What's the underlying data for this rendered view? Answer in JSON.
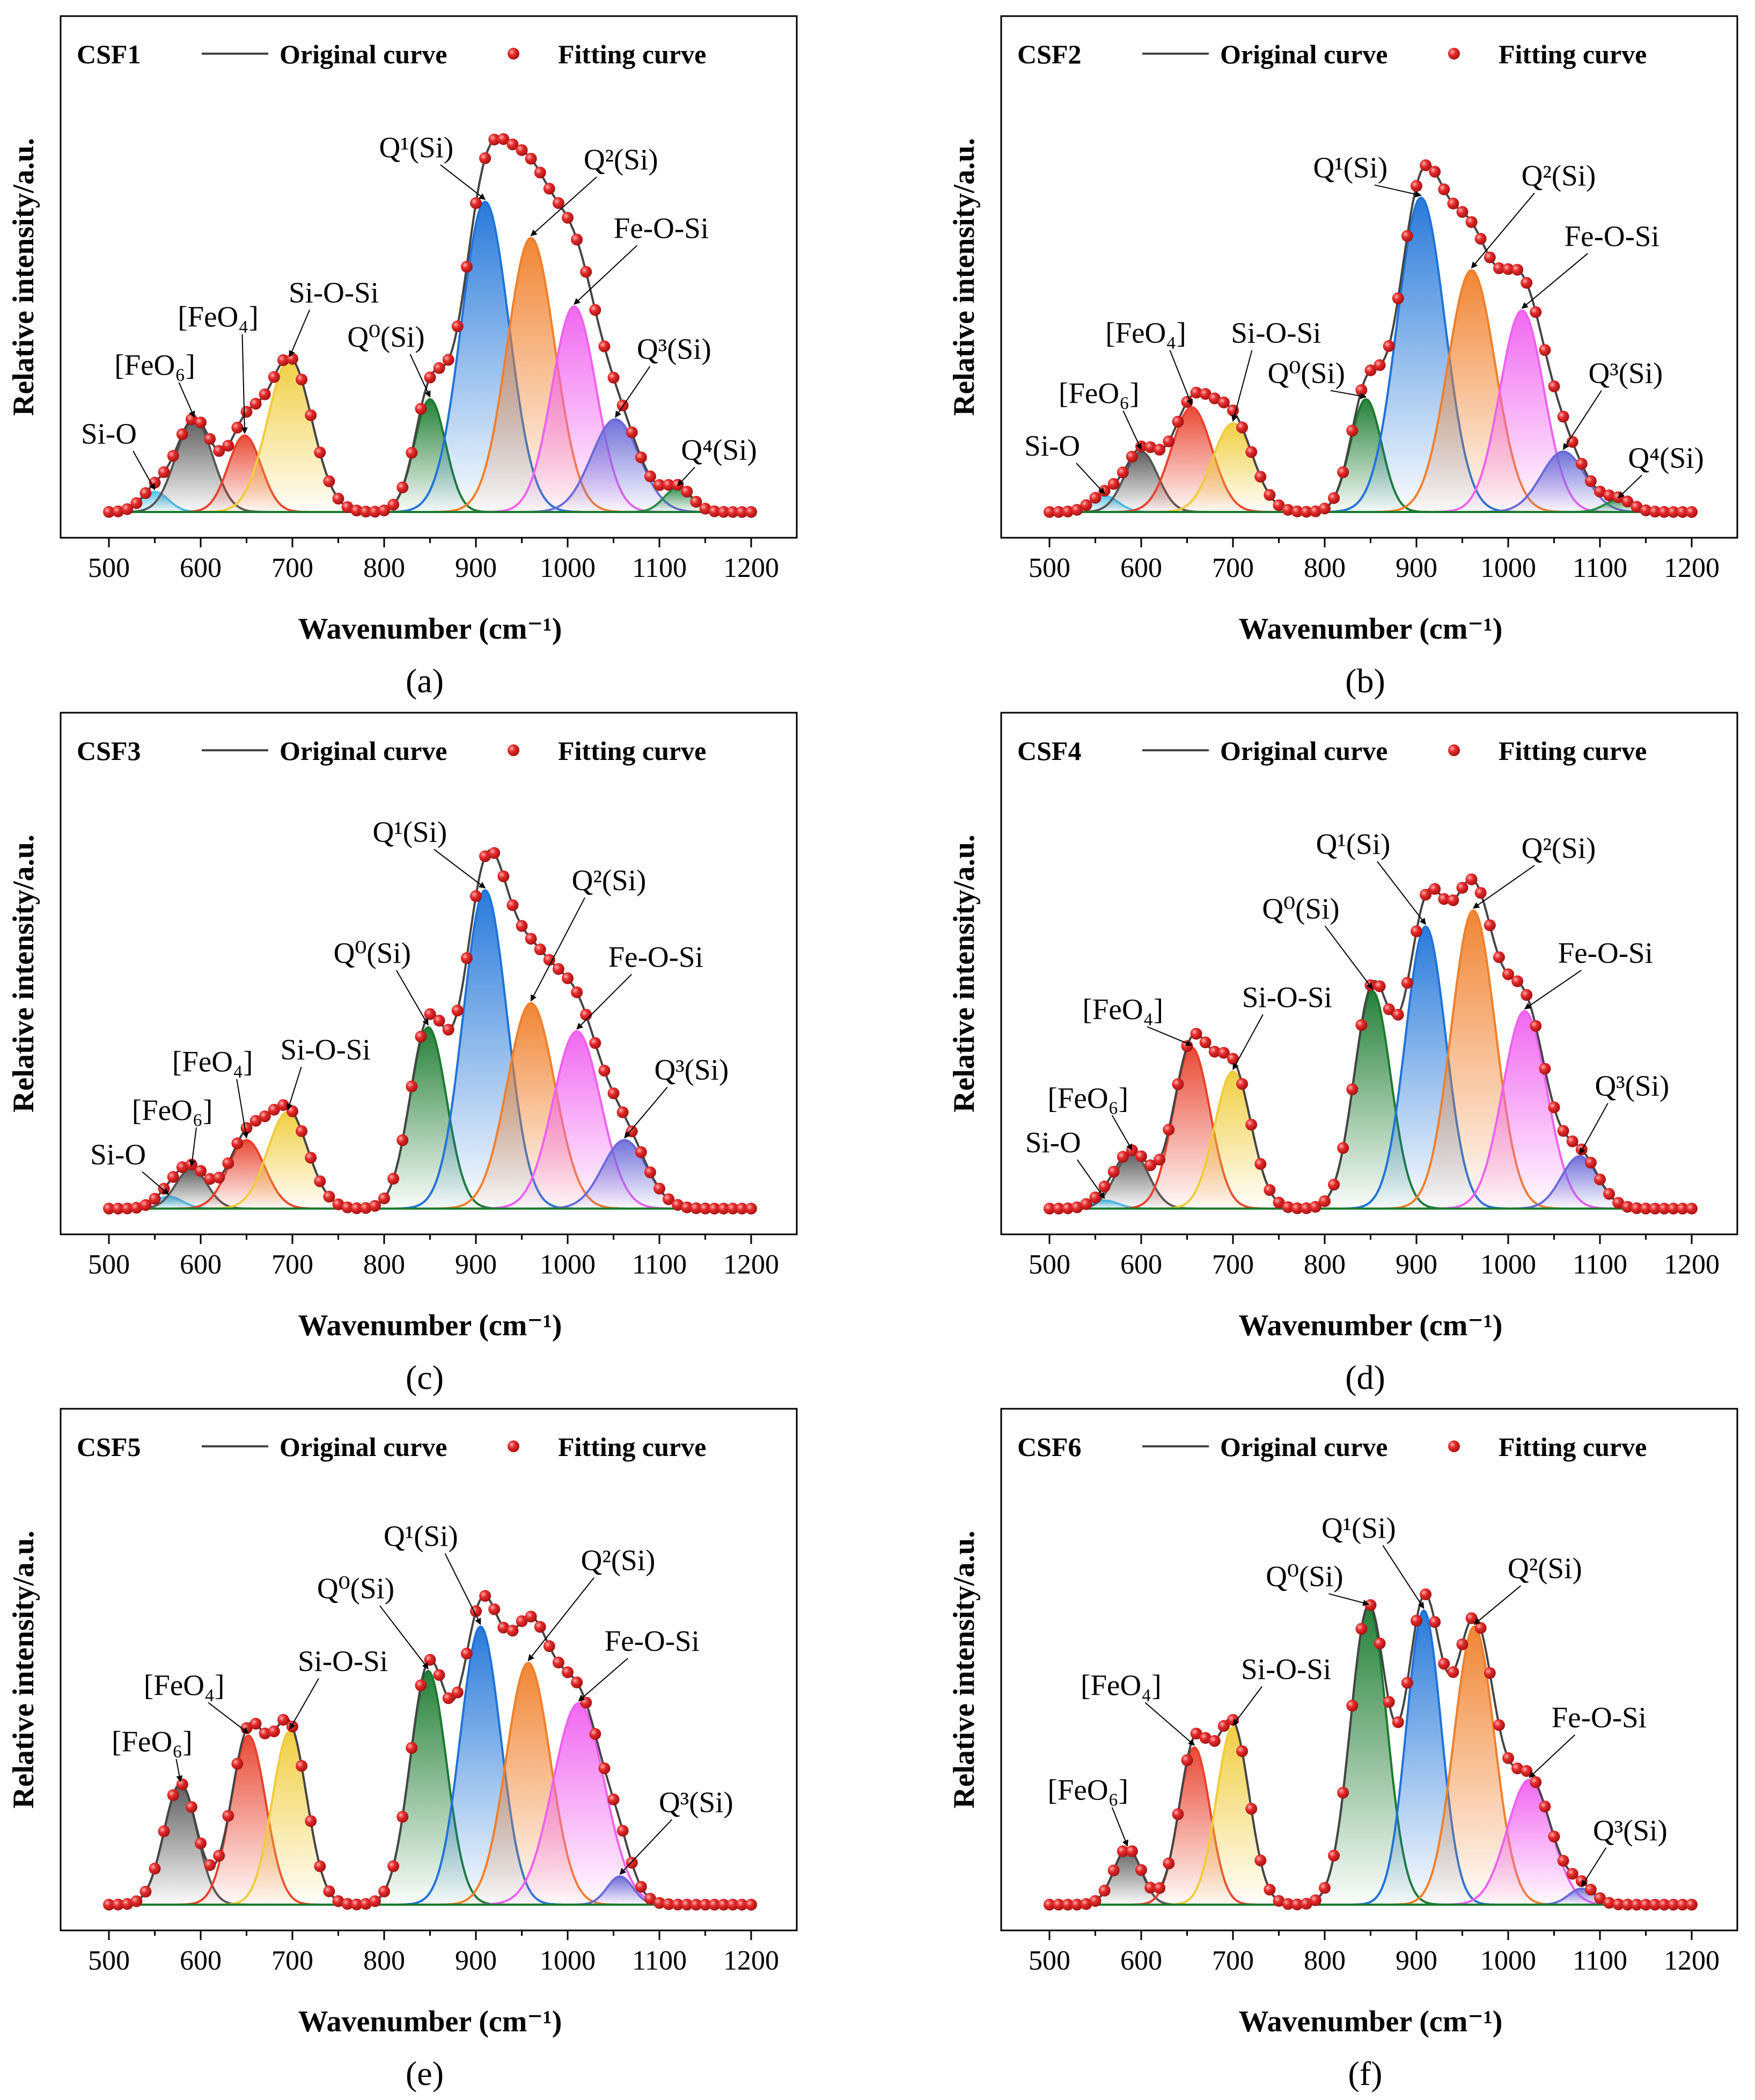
{
  "common": {
    "legend_original": "Original curve",
    "legend_fitting": "Fitting curve",
    "xlabel": "Wavenumber (cm⁻¹)",
    "ylabel": "Relative intensity/a.u.",
    "xticks": [
      "500",
      "600",
      "700",
      "800",
      "900",
      "1000",
      "1100",
      "1200"
    ],
    "colors": {
      "original": "#444444",
      "fitting_dot": "#e52b2b"
    }
  },
  "chart_data": [
    {
      "type": "area",
      "title": "CSF1",
      "caption": "(a)",
      "xlim": [
        500,
        1200
      ],
      "ylim": [
        0,
        1.2
      ],
      "xlabel": "Wavenumber (cm⁻¹)",
      "ylabel": "Relative intensity/a.u.",
      "peaks": [
        {
          "label": "Si-O",
          "center": 550,
          "height": 0.05,
          "sigma": 15,
          "color": "#4cc3f0"
        },
        {
          "label": "[FeO₆]",
          "center": 593,
          "height": 0.23,
          "sigma": 20,
          "color": "#555555"
        },
        {
          "label": "[FeO₄]",
          "center": 648,
          "height": 0.19,
          "sigma": 18,
          "color": "#e8412c"
        },
        {
          "label": "Si-O-Si",
          "center": 697,
          "height": 0.38,
          "sigma": 24,
          "color": "#f0cc3a"
        },
        {
          "label": "Q⁰(Si)",
          "center": 850,
          "height": 0.28,
          "sigma": 17,
          "color": "#1a7a2e"
        },
        {
          "label": "Q¹(Si)",
          "center": 910,
          "height": 0.77,
          "sigma": 26,
          "color": "#1e73d8"
        },
        {
          "label": "Q²(Si)",
          "center": 960,
          "height": 0.68,
          "sigma": 26,
          "color": "#f07f2a"
        },
        {
          "label": "Fe-O-Si",
          "center": 1007,
          "height": 0.51,
          "sigma": 24,
          "color": "#f060f0"
        },
        {
          "label": "Q³(Si)",
          "center": 1052,
          "height": 0.23,
          "sigma": 26,
          "color": "#6a6ad8"
        },
        {
          "label": "Q⁴(Si)",
          "center": 1120,
          "height": 0.06,
          "sigma": 15,
          "color": "#2a8a4a"
        }
      ]
    },
    {
      "type": "area",
      "title": "CSF2",
      "caption": "(b)",
      "xlim": [
        500,
        1200
      ],
      "ylim": [
        0,
        1.2
      ],
      "xlabel": "Wavenumber (cm⁻¹)",
      "ylabel": "Relative intensity/a.u.",
      "peaks": [
        {
          "label": "Si-O",
          "center": 560,
          "height": 0.04,
          "sigma": 15,
          "color": "#4cc3f0"
        },
        {
          "label": "[FeO₆]",
          "center": 600,
          "height": 0.15,
          "sigma": 18,
          "color": "#555555"
        },
        {
          "label": "[FeO₄]",
          "center": 655,
          "height": 0.26,
          "sigma": 22,
          "color": "#e8412c"
        },
        {
          "label": "Si-O-Si",
          "center": 700,
          "height": 0.22,
          "sigma": 22,
          "color": "#f0cc3a"
        },
        {
          "label": "Q⁰(Si)",
          "center": 845,
          "height": 0.28,
          "sigma": 17,
          "color": "#1a7a2e"
        },
        {
          "label": "Q¹(Si)",
          "center": 905,
          "height": 0.78,
          "sigma": 26,
          "color": "#1e73d8"
        },
        {
          "label": "Q²(Si)",
          "center": 960,
          "height": 0.6,
          "sigma": 26,
          "color": "#f07f2a"
        },
        {
          "label": "Fe-O-Si",
          "center": 1015,
          "height": 0.5,
          "sigma": 24,
          "color": "#f060f0"
        },
        {
          "label": "Q³(Si)",
          "center": 1060,
          "height": 0.15,
          "sigma": 24,
          "color": "#6a6ad8"
        },
        {
          "label": "Q⁴(Si)",
          "center": 1120,
          "height": 0.03,
          "sigma": 15,
          "color": "#2a8a4a"
        }
      ]
    },
    {
      "type": "area",
      "title": "CSF3",
      "caption": "(c)",
      "xlim": [
        500,
        1200
      ],
      "ylim": [
        0,
        1.2
      ],
      "xlabel": "Wavenumber (cm⁻¹)",
      "ylabel": "Relative intensity/a.u.",
      "peaks": [
        {
          "label": "Si-O",
          "center": 565,
          "height": 0.03,
          "sigma": 15,
          "color": "#4cc3f0"
        },
        {
          "label": "[FeO₆]",
          "center": 590,
          "height": 0.1,
          "sigma": 17,
          "color": "#555555"
        },
        {
          "label": "[FeO₄]",
          "center": 650,
          "height": 0.17,
          "sigma": 20,
          "color": "#e8412c"
        },
        {
          "label": "Si-O-Si",
          "center": 695,
          "height": 0.24,
          "sigma": 22,
          "color": "#f0cc3a"
        },
        {
          "label": "Q⁰(Si)",
          "center": 848,
          "height": 0.45,
          "sigma": 20,
          "color": "#1a7a2e"
        },
        {
          "label": "Q¹(Si)",
          "center": 910,
          "height": 0.79,
          "sigma": 24,
          "color": "#1e73d8"
        },
        {
          "label": "Q²(Si)",
          "center": 960,
          "height": 0.51,
          "sigma": 26,
          "color": "#f07f2a"
        },
        {
          "label": "Fe-O-Si",
          "center": 1010,
          "height": 0.44,
          "sigma": 26,
          "color": "#f060f0"
        },
        {
          "label": "Q³(Si)",
          "center": 1062,
          "height": 0.17,
          "sigma": 24,
          "color": "#6a6ad8"
        }
      ]
    },
    {
      "type": "area",
      "title": "CSF4",
      "caption": "(d)",
      "xlim": [
        500,
        1200
      ],
      "ylim": [
        0,
        1.2
      ],
      "xlabel": "Wavenumber (cm⁻¹)",
      "ylabel": "Relative intensity/a.u.",
      "peaks": [
        {
          "label": "Si-O",
          "center": 560,
          "height": 0.02,
          "sigma": 15,
          "color": "#4cc3f0"
        },
        {
          "label": "[FeO₆]",
          "center": 590,
          "height": 0.14,
          "sigma": 18,
          "color": "#555555"
        },
        {
          "label": "[FeO₄]",
          "center": 655,
          "height": 0.4,
          "sigma": 20,
          "color": "#e8412c"
        },
        {
          "label": "Si-O-Si",
          "center": 700,
          "height": 0.34,
          "sigma": 20,
          "color": "#f0cc3a"
        },
        {
          "label": "Q⁰(Si)",
          "center": 852,
          "height": 0.54,
          "sigma": 20,
          "color": "#1a7a2e"
        },
        {
          "label": "Q¹(Si)",
          "center": 910,
          "height": 0.7,
          "sigma": 22,
          "color": "#1e73d8"
        },
        {
          "label": "Q²(Si)",
          "center": 962,
          "height": 0.74,
          "sigma": 24,
          "color": "#f07f2a"
        },
        {
          "label": "Fe-O-Si",
          "center": 1018,
          "height": 0.49,
          "sigma": 24,
          "color": "#f060f0"
        },
        {
          "label": "Q³(Si)",
          "center": 1078,
          "height": 0.13,
          "sigma": 20,
          "color": "#6a6ad8"
        }
      ]
    },
    {
      "type": "area",
      "title": "CSF5",
      "caption": "(e)",
      "xlim": [
        500,
        1200
      ],
      "ylim": [
        0,
        1.2
      ],
      "xlabel": "Wavenumber (cm⁻¹)",
      "ylabel": "Relative intensity/a.u.",
      "peaks": [
        {
          "label": "[FeO₆]",
          "center": 578,
          "height": 0.3,
          "sigma": 18,
          "color": "#555555"
        },
        {
          "label": "[FeO₄]",
          "center": 652,
          "height": 0.42,
          "sigma": 19,
          "color": "#e8412c"
        },
        {
          "label": "Si-O-Si",
          "center": 697,
          "height": 0.43,
          "sigma": 19,
          "color": "#f0cc3a"
        },
        {
          "label": "Q⁰(Si)",
          "center": 848,
          "height": 0.58,
          "sigma": 20,
          "color": "#1a7a2e"
        },
        {
          "label": "Q¹(Si)",
          "center": 905,
          "height": 0.69,
          "sigma": 22,
          "color": "#1e73d8"
        },
        {
          "label": "Q²(Si)",
          "center": 957,
          "height": 0.6,
          "sigma": 24,
          "color": "#f07f2a"
        },
        {
          "label": "Fe-O-Si",
          "center": 1012,
          "height": 0.5,
          "sigma": 28,
          "color": "#f060f0"
        },
        {
          "label": "Q³(Si)",
          "center": 1057,
          "height": 0.07,
          "sigma": 14,
          "color": "#6a6ad8"
        }
      ]
    },
    {
      "type": "area",
      "title": "CSF6",
      "caption": "(f)",
      "xlim": [
        500,
        1200
      ],
      "ylim": [
        0,
        1.2
      ],
      "xlabel": "Wavenumber (cm⁻¹)",
      "ylabel": "Relative intensity/a.u.",
      "peaks": [
        {
          "label": "[FeO₆]",
          "center": 585,
          "height": 0.14,
          "sigma": 15,
          "color": "#555555"
        },
        {
          "label": "[FeO₄]",
          "center": 658,
          "height": 0.39,
          "sigma": 17,
          "color": "#e8412c"
        },
        {
          "label": "Si-O-Si",
          "center": 700,
          "height": 0.44,
          "sigma": 18,
          "color": "#f0cc3a"
        },
        {
          "label": "Q⁰(Si)",
          "center": 848,
          "height": 0.74,
          "sigma": 20,
          "color": "#1a7a2e"
        },
        {
          "label": "Q¹(Si)",
          "center": 908,
          "height": 0.73,
          "sigma": 19,
          "color": "#1e73d8"
        },
        {
          "label": "Q²(Si)",
          "center": 963,
          "height": 0.69,
          "sigma": 22,
          "color": "#f07f2a"
        },
        {
          "label": "Fe-O-Si",
          "center": 1023,
          "height": 0.31,
          "sigma": 24,
          "color": "#f060f0"
        },
        {
          "label": "Q³(Si)",
          "center": 1080,
          "height": 0.04,
          "sigma": 14,
          "color": "#6a6ad8"
        }
      ]
    }
  ]
}
